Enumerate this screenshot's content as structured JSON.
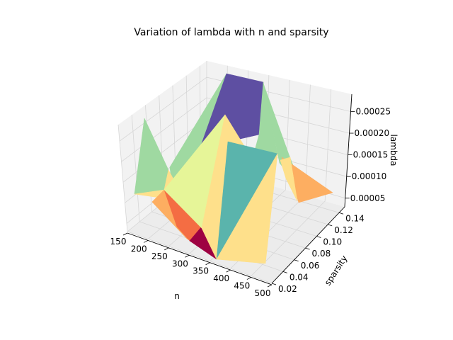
{
  "chart_data": {
    "type": "3d-surface",
    "title": "Variation of lambda with n and sparsity",
    "xlabel": "n",
    "ylabel": "sparsity",
    "zlabel": "lambda",
    "x_ticks": [
      "150",
      "200",
      "250",
      "300",
      "350",
      "400",
      "450",
      "500"
    ],
    "y_ticks": [
      "0.02",
      "0.04",
      "0.06",
      "0.08",
      "0.10",
      "0.12",
      "0.14"
    ],
    "z_ticks": [
      "0.00005",
      "0.00010",
      "0.00015",
      "0.00020",
      "0.00025"
    ],
    "xlim": [
      150,
      500
    ],
    "ylim": [
      0.02,
      0.15
    ],
    "zlim": [
      3e-05,
      0.00029
    ],
    "grid": true,
    "colormap": "Spectral",
    "colors": {
      "purple": "#5e4fa2",
      "teal": "#5ab4ac",
      "green": "#9fd9a1",
      "yellow_light": "#e6f598",
      "yellow": "#fee08b",
      "orange": "#fdae61",
      "red_orange": "#f46d43",
      "crimson": "#9e0142",
      "pane": "#f2f2f2",
      "grid": "#d6d6d6"
    }
  }
}
